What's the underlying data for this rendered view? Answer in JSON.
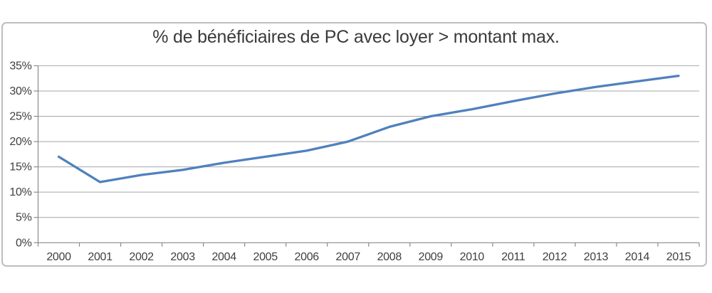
{
  "chart_data": {
    "type": "line",
    "title": "% de bénéficiaires de PC avec loyer > montant max.",
    "categories": [
      "2000",
      "2001",
      "2002",
      "2003",
      "2004",
      "2005",
      "2006",
      "2007",
      "2008",
      "2009",
      "2010",
      "2011",
      "2012",
      "2013",
      "2014",
      "2015"
    ],
    "values": [
      17.0,
      12.0,
      13.4,
      14.4,
      15.8,
      17.0,
      18.2,
      20.0,
      22.9,
      25.0,
      26.4,
      28.0,
      29.5,
      30.8,
      31.9,
      33.0
    ],
    "xlabel": "",
    "ylabel": "",
    "ylim": [
      0,
      35
    ],
    "y_tick_values": [
      0,
      5,
      10,
      15,
      20,
      25,
      30,
      35
    ],
    "y_tick_labels": [
      "0%",
      "5%",
      "10%",
      "15%",
      "20%",
      "25%",
      "30%",
      "35%"
    ],
    "grid": true,
    "legend": false
  },
  "colors": {
    "line": "#4f81bd",
    "grid": "#a6a6a6",
    "axis": "#8a8a8a",
    "text": "#3f3f3f",
    "title_text": "#3a3a3a",
    "border": "#bdbdbd",
    "background": "#ffffff"
  }
}
